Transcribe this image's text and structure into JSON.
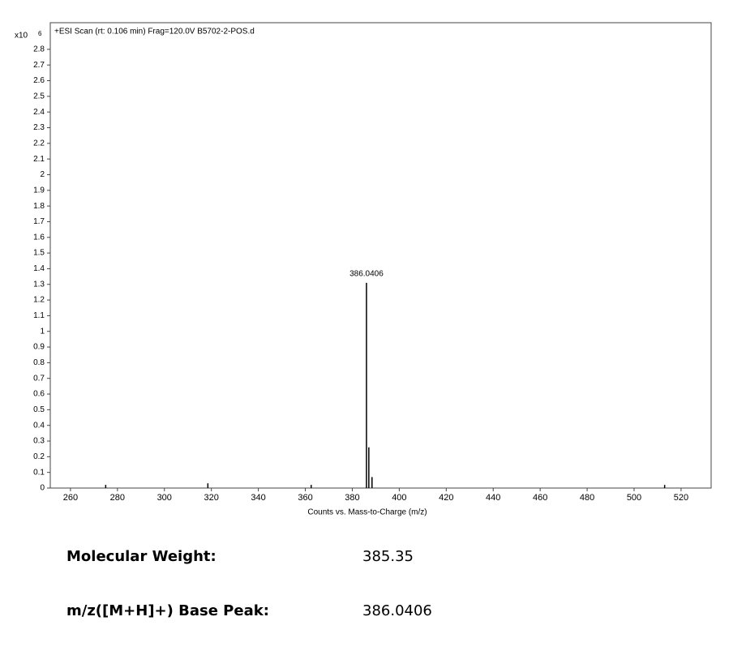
{
  "chart_data": {
    "type": "spectrum",
    "subtitle": "+ESI Scan (rt: 0.106 min) Frag=120.0V B5702-2-POS.d",
    "xlabel": "Counts vs. Mass-to-Charge (m/z)",
    "y_multiplier": "x10",
    "y_exponent": "6",
    "x": [
      386.0406,
      387.04,
      388.4,
      275,
      318.5,
      362.5,
      513
    ],
    "values": [
      1.31,
      0.26,
      0.07,
      0.02,
      0.03,
      0.02,
      0.02
    ],
    "color": "#000000",
    "xlim": [
      251.4,
      532.8
    ],
    "ylim": [
      0,
      2.97
    ],
    "xticks": [
      260,
      280,
      300,
      320,
      340,
      360,
      380,
      400,
      420,
      440,
      460,
      480,
      500,
      520
    ],
    "yticks": [
      0,
      0.1,
      0.2,
      0.3,
      0.4,
      0.5,
      0.6,
      0.7,
      0.8,
      0.9,
      1,
      1.1,
      1.2,
      1.3,
      1.4,
      1.5,
      1.6,
      1.7,
      1.8,
      1.9,
      2,
      2.1,
      2.2,
      2.3,
      2.4,
      2.5,
      2.6,
      2.7,
      2.8
    ]
  },
  "details": [
    {
      "label": "Molecular Weight:",
      "value": "385.35"
    },
    {
      "label": "m/z([M+H]+) Base Peak:",
      "value": "386.0406"
    }
  ]
}
